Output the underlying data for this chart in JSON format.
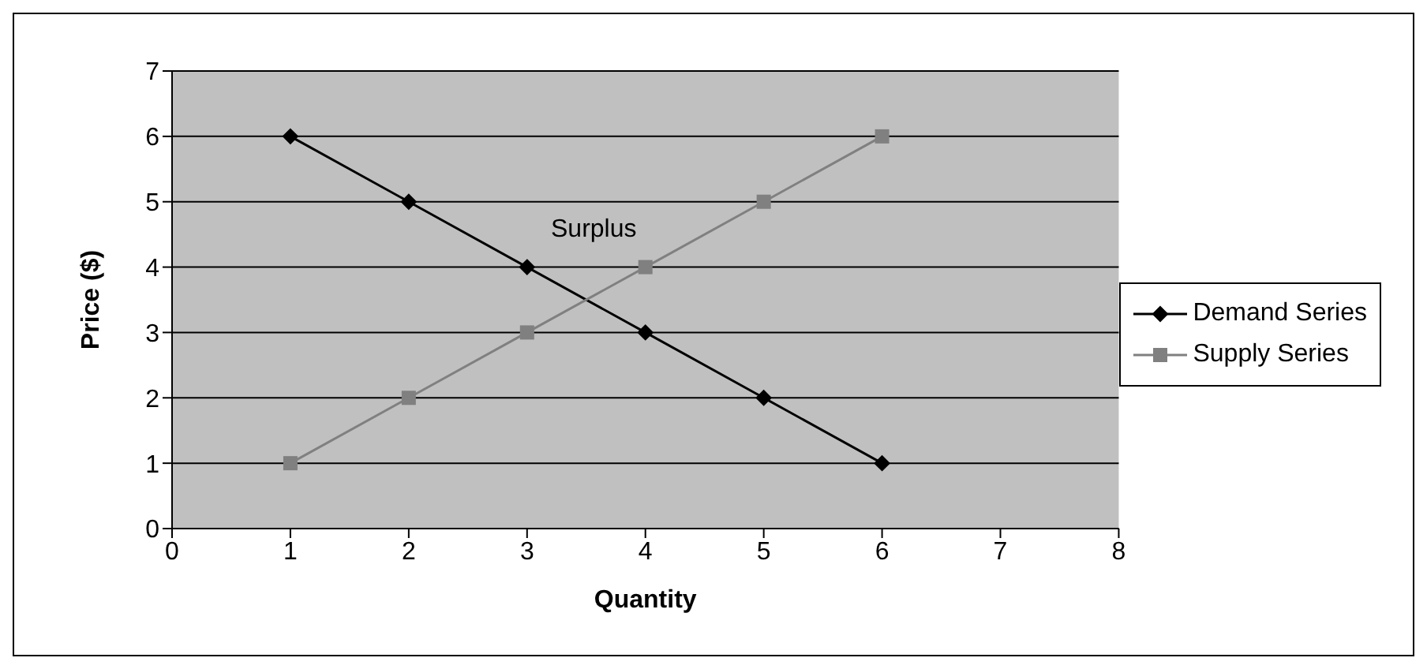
{
  "chart_data": {
    "type": "line",
    "xlabel": "Quantity",
    "ylabel": "Price ($)",
    "annotations": [
      "Surplus"
    ],
    "x": [
      1,
      2,
      3,
      4,
      5,
      6
    ],
    "series": [
      {
        "name": "Demand Series",
        "color": "#000000",
        "marker": "diamond",
        "values": [
          6,
          5,
          4,
          3,
          2,
          1
        ]
      },
      {
        "name": "Supply Series",
        "color": "#808080",
        "marker": "square",
        "values": [
          1,
          2,
          3,
          4,
          5,
          6
        ]
      }
    ],
    "xlim": [
      0,
      8
    ],
    "xticks": [
      0,
      1,
      2,
      3,
      4,
      5,
      6,
      7,
      8
    ],
    "ylim": [
      0,
      7
    ],
    "yticks": [
      0,
      1,
      2,
      3,
      4,
      5,
      6,
      7
    ],
    "grid": "y",
    "legend": "right"
  }
}
